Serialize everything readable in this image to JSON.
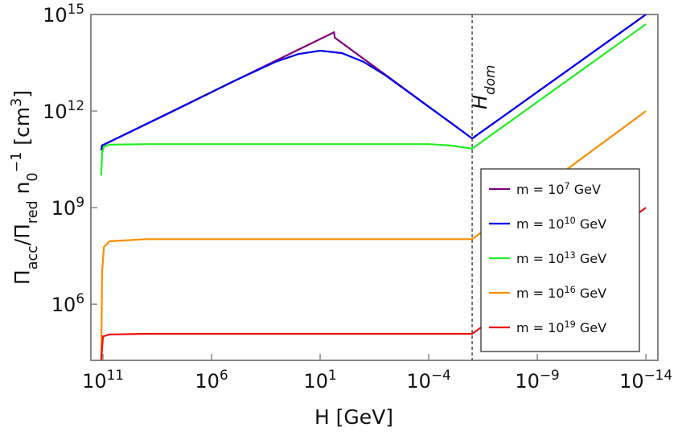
{
  "chart_data": {
    "type": "line",
    "xlabel": "H [GeV]",
    "ylabel": "Π_{acc}/Π_{red} n_0^{−1} [cm^3]",
    "xscale": "log",
    "yscale": "log",
    "xlim": [
      360000000000.0,
      2.8e-15
    ],
    "ylim": [
      18000.0,
      1000000000000000.0
    ],
    "xticks": [
      {
        "value": 100000000000.0,
        "label": "10^{11}"
      },
      {
        "value": 1000000.0,
        "label": "10^6"
      },
      {
        "value": 10,
        "label": "10^1"
      },
      {
        "value": 0.0001,
        "label": "10^{−4}"
      },
      {
        "value": 1e-09,
        "label": "10^{−9}"
      },
      {
        "value": 1e-14,
        "label": "10^{−14}"
      }
    ],
    "yticks": [
      {
        "value": 1000000000000000.0,
        "label": "10^{15}"
      },
      {
        "value": 1000000000000.0,
        "label": "10^{12}"
      },
      {
        "value": 1000000000.0,
        "label": "10^9"
      },
      {
        "value": 1000000.0,
        "label": "10^6"
      }
    ],
    "vline": {
      "x": 1e-06,
      "label": "H_{dom}"
    },
    "legend": "lower right",
    "series": [
      {
        "name": "m = 10^7 GeV",
        "color": "#800080",
        "x": [
          120000000000.0,
          110000000000.0,
          2.3,
          2.1,
          0.01,
          1e-06,
          1e-14
        ],
        "values": [
          60000000000.0,
          85000000000.0,
          280000000000000.0,
          190000000000000.0,
          13500000000000.0,
          140000000000.0,
          1000000000000000.0
        ]
      },
      {
        "name": "m = 10^{10} GeV",
        "color": "#0000ee",
        "x": [
          120000000000.0,
          110000000000.0,
          100000000.0,
          100000.0,
          1000,
          100,
          10,
          1,
          0.1,
          0.01,
          0.001,
          0.0001,
          1e-05,
          1e-06,
          1e-14
        ],
        "values": [
          60000000000.0,
          85000000000.0,
          830000000000.0,
          8300000000000.0,
          35000000000000.0,
          59000000000000.0,
          75000000000000.0,
          63000000000000.0,
          34000000000000.0,
          13000000000000.0,
          4200000000000.0,
          1350000000000.0,
          440000000000.0,
          140000000000.0,
          1000000000000000.0
        ]
      },
      {
        "name": "m = 10^{13} GeV",
        "color": "#22ee22",
        "x": [
          120000000000.0,
          110000000000.0,
          90000000000.0,
          50000000000.0,
          1000000000.0,
          0.0001,
          1e-05,
          1e-06,
          1e-14
        ],
        "values": [
          10000000000.0,
          50000000000.0,
          80000000000.0,
          90000000000.0,
          94000000000.0,
          94000000000.0,
          85000000000.0,
          68000000000.0,
          500000000000000.0
        ]
      },
      {
        "name": "m = 10^{16} GeV",
        "color": "#ff8c00",
        "x": [
          120000000000.0,
          110000000000.0,
          90000000000.0,
          50000000000.0,
          1000000000.0,
          1e-06,
          1e-14
        ],
        "values": [
          18000.0,
          10000000.0,
          60000000.0,
          90000000.0,
          105000000.0,
          105000000.0,
          1000000000000.0
        ]
      },
      {
        "name": "m = 10^{19} GeV",
        "color": "#ee1111",
        "x": [
          120000000000.0,
          100000000000.0,
          50000000000.0,
          1000000000.0,
          1e-06,
          1e-14
        ],
        "values": [
          18000.0,
          100000.0,
          115000.0,
          120000.0,
          120000.0,
          1000000000.0
        ]
      }
    ]
  }
}
